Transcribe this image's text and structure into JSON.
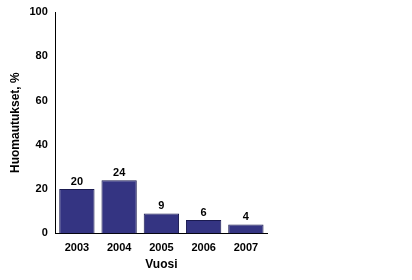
{
  "chart_data": {
    "type": "bar",
    "categories": [
      "2003",
      "2004",
      "2005",
      "2006",
      "2007"
    ],
    "values": [
      20,
      24,
      9,
      6,
      4
    ],
    "color": "#343482",
    "x_label": "Vuosi",
    "y_label": "Huomautukset, %",
    "ylim": [
      0,
      100
    ],
    "yticks": [
      0,
      20,
      40,
      60,
      80,
      100
    ],
    "grid": false,
    "data_labels": true
  }
}
